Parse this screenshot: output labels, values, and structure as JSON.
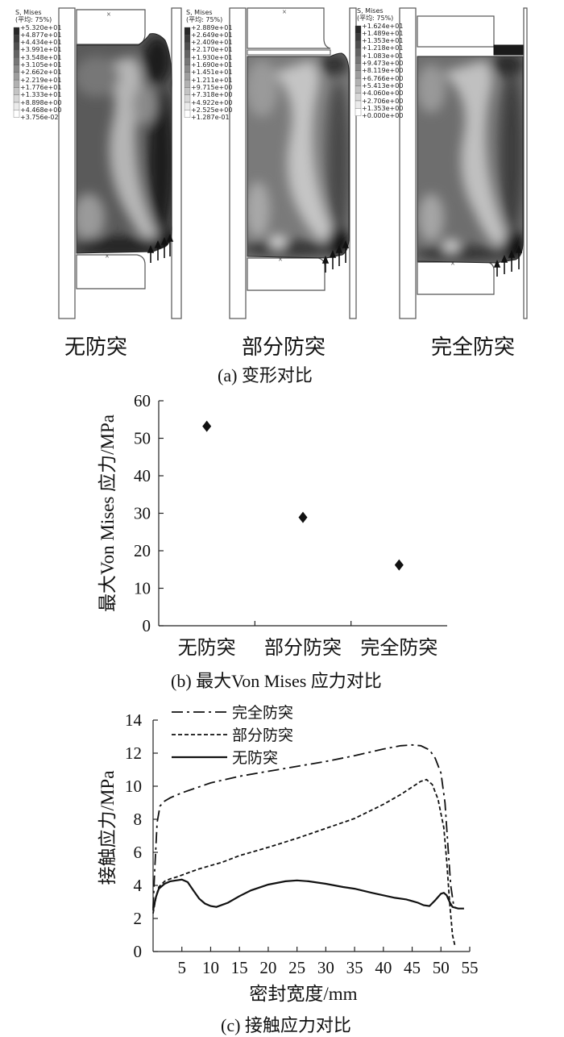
{
  "panel_a": {
    "caption": "(a)  变形对比",
    "subfigures": [
      {
        "label": "无防突",
        "legend_title": "S, Mises",
        "legend_subtitle": "(平均: 75%)",
        "legend_values": [
          "+5.320e+01",
          "+4.877e+01",
          "+4.434e+01",
          "+3.991e+01",
          "+3.548e+01",
          "+3.105e+01",
          "+2.662e+01",
          "+2.219e+01",
          "+1.776e+01",
          "+1.333e+01",
          "+8.898e+00",
          "+4.468e+00",
          "+3.756e-02"
        ]
      },
      {
        "label": "部分防突",
        "legend_title": "S, Mises",
        "legend_subtitle": "(平均: 75%)",
        "legend_values": [
          "+2.889e+01",
          "+2.649e+01",
          "+2.409e+01",
          "+2.170e+01",
          "+1.930e+01",
          "+1.690e+01",
          "+1.451e+01",
          "+1.211e+01",
          "+9.715e+00",
          "+7.318e+00",
          "+4.922e+00",
          "+2.525e+00",
          "+1.287e-01"
        ]
      },
      {
        "label": "完全防突",
        "legend_title": "S, Mises",
        "legend_subtitle": "(平均: 75%)",
        "legend_values": [
          "+1.624e+01",
          "+1.489e+01",
          "+1.353e+01",
          "+1.218e+01",
          "+1.083e+01",
          "+9.473e+00",
          "+8.119e+00",
          "+6.766e+00",
          "+5.413e+00",
          "+4.060e+00",
          "+2.706e+00",
          "+1.353e+00",
          "+0.000e+00"
        ]
      }
    ]
  },
  "panel_b": {
    "caption": "(b)  最大Von Mises 应力对比"
  },
  "panel_c": {
    "caption": "(c)  接触应力对比"
  },
  "chart_data": [
    {
      "type": "scatter",
      "categories": [
        "无防突",
        "部分防突",
        "完全防突"
      ],
      "values": [
        53.2,
        28.9,
        16.2
      ],
      "ylabel": "最大Von Mises 应力/MPa",
      "xlabel": "",
      "ylim": [
        0,
        60
      ],
      "yticks": [
        0,
        10,
        20,
        30,
        40,
        50,
        60
      ],
      "marker": "diamond",
      "grid": false
    },
    {
      "type": "line",
      "xlabel": "密封宽度/mm",
      "ylabel": "接触应力/MPa",
      "xlim": [
        0,
        55
      ],
      "ylim": [
        0,
        14
      ],
      "xticks": [
        5,
        10,
        15,
        20,
        25,
        30,
        35,
        40,
        45,
        50,
        55
      ],
      "yticks": [
        0,
        2,
        4,
        6,
        8,
        10,
        12,
        14
      ],
      "legend_position": "top-left",
      "grid": false,
      "series": [
        {
          "name": "完全防突",
          "dash": "dash-dot",
          "x": [
            0,
            0.3,
            0.7,
            1.2,
            2,
            3,
            5,
            10,
            15,
            20,
            25,
            30,
            35,
            40,
            43,
            45,
            46.5,
            48,
            49,
            50,
            50.7,
            51.2,
            51.7,
            52.2,
            52.7
          ],
          "y": [
            2.6,
            5.0,
            7.8,
            8.8,
            9.1,
            9.3,
            9.6,
            10.2,
            10.6,
            10.9,
            11.2,
            11.5,
            11.85,
            12.25,
            12.45,
            12.5,
            12.45,
            12.2,
            11.7,
            10.8,
            9.0,
            6.5,
            4.0,
            2.8,
            2.6
          ]
        },
        {
          "name": "部分防突",
          "dash": "dashed",
          "x": [
            0,
            0.5,
            1,
            2,
            3,
            4,
            6,
            8,
            10,
            12,
            15,
            20,
            25,
            30,
            35,
            40,
            43,
            45,
            46.5,
            47.5,
            48.5,
            49.5,
            50.5,
            51,
            51.5,
            52,
            52.4
          ],
          "y": [
            2.3,
            3.3,
            3.9,
            4.25,
            4.4,
            4.5,
            4.75,
            5.0,
            5.2,
            5.4,
            5.8,
            6.3,
            6.85,
            7.45,
            8.05,
            8.9,
            9.5,
            9.95,
            10.3,
            10.4,
            10.1,
            9.2,
            7.5,
            5.5,
            3.0,
            1.0,
            0.4
          ]
        },
        {
          "name": "无防突",
          "dash": "solid",
          "x": [
            0,
            0.5,
            1,
            2,
            3,
            4,
            5,
            6,
            7,
            8,
            9,
            10,
            11,
            13,
            15,
            17,
            20,
            23,
            25,
            27,
            30,
            33,
            35,
            38,
            40,
            42,
            44,
            46,
            47,
            48,
            49,
            50,
            50.5,
            51,
            51.5,
            52,
            53,
            54
          ],
          "y": [
            2.5,
            3.3,
            3.8,
            4.1,
            4.25,
            4.3,
            4.35,
            4.2,
            3.7,
            3.2,
            2.9,
            2.75,
            2.7,
            2.95,
            3.35,
            3.7,
            4.05,
            4.25,
            4.3,
            4.25,
            4.1,
            3.9,
            3.8,
            3.55,
            3.4,
            3.25,
            3.15,
            2.95,
            2.8,
            2.75,
            3.1,
            3.5,
            3.55,
            3.4,
            3.0,
            2.7,
            2.6,
            2.6
          ]
        }
      ]
    }
  ]
}
